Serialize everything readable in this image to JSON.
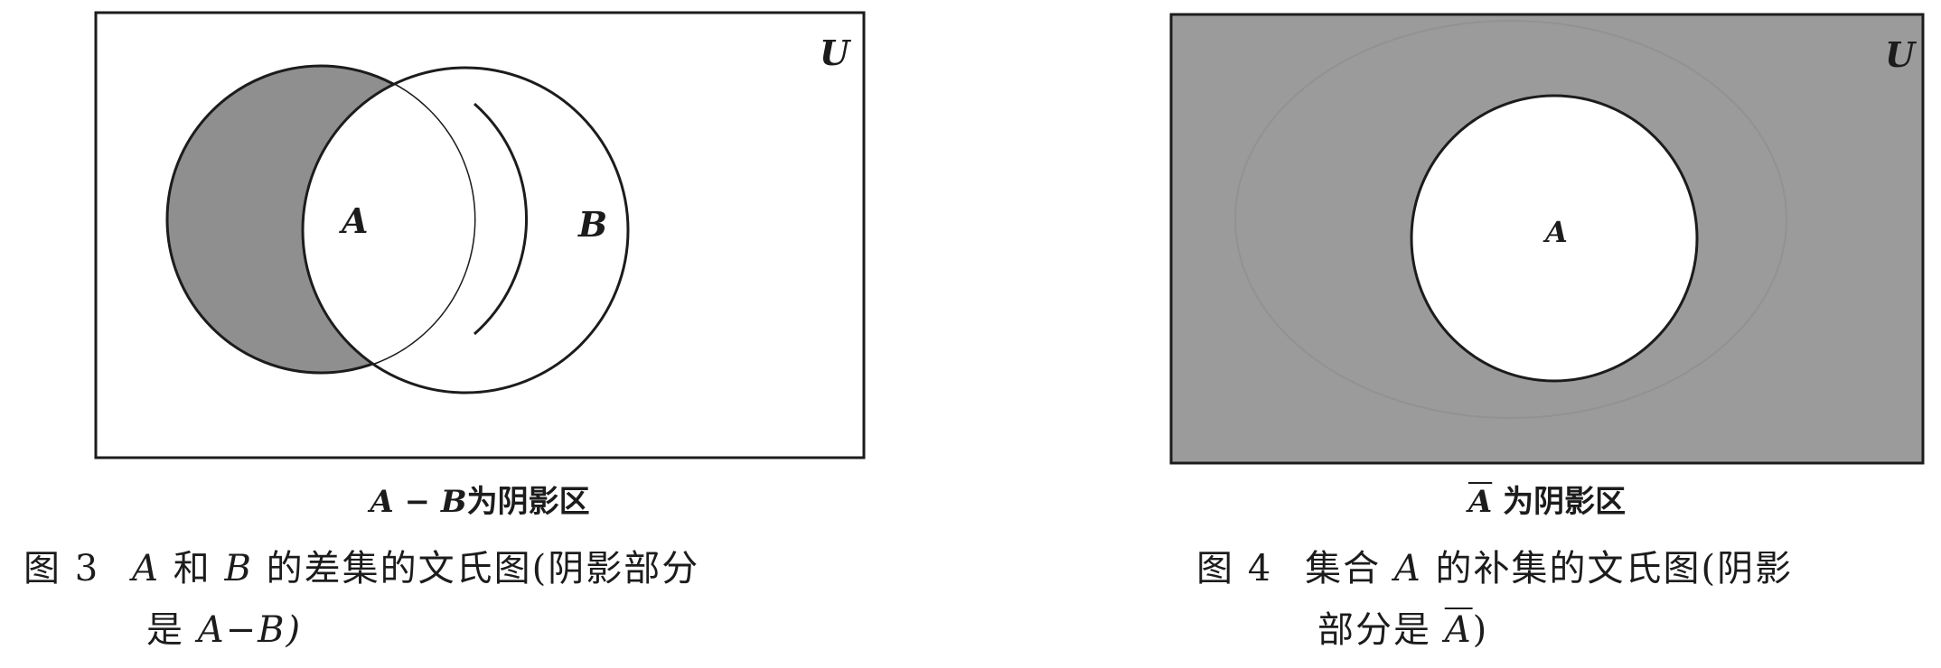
{
  "figure3": {
    "universe_label": "U",
    "set_a_label": "A",
    "set_b_label": "B",
    "subcaption_set": "A",
    "subcaption_op": "−",
    "subcaption_set2": "B",
    "subcaption_text": "为阴影区",
    "caption_number": "图 3",
    "caption_line1_pre": "A",
    "caption_line1_mid": "和",
    "caption_line1_set": "B",
    "caption_line1_post": "的差集的文氏图(阴影部分",
    "caption_line2_pre": "是",
    "caption_line2_expr": "A−B)",
    "shading_color": "#8f8f8f"
  },
  "figure4": {
    "universe_label": "U",
    "set_a_label": "A",
    "subcaption_set": "A",
    "subcaption_text": "为阴影区",
    "caption_number": "图 4",
    "caption_line1_pre": "集合",
    "caption_line1_set": "A",
    "caption_line1_post": "的补集的文氏图(阴影",
    "caption_line2_pre": "部分是",
    "caption_line2_set": "A",
    "caption_line2_post": ")",
    "shading_color": "#9b9b9b"
  }
}
